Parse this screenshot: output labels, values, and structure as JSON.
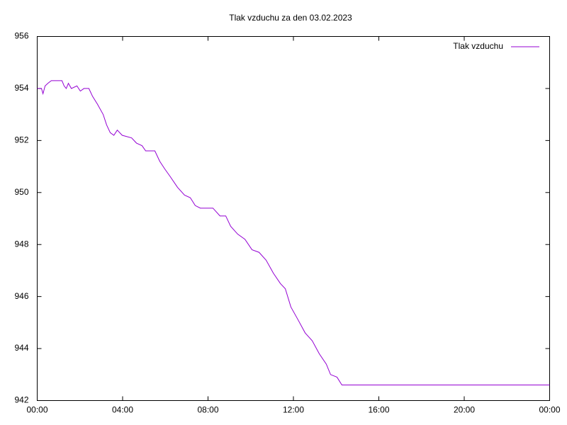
{
  "chart_data": {
    "type": "line",
    "title": "Tlak vzduchu za den 03.02.2023",
    "x": [
      0,
      0.2,
      0.27,
      0.37,
      0.5,
      0.66,
      1.16,
      1.26,
      1.36,
      1.46,
      1.6,
      1.86,
      2.02,
      2.19,
      2.42,
      2.59,
      2.82,
      3.09,
      3.25,
      3.42,
      3.59,
      3.75,
      3.98,
      4.42,
      4.65,
      4.91,
      5.08,
      5.51,
      5.74,
      5.98,
      6.24,
      6.57,
      6.9,
      7.17,
      7.4,
      7.64,
      7.8,
      8.23,
      8.56,
      8.83,
      9.06,
      9.39,
      9.73,
      10.06,
      10.39,
      10.72,
      11.06,
      11.39,
      11.62,
      11.88,
      12.22,
      12.55,
      12.88,
      13.21,
      13.54,
      13.74,
      14.04,
      14.27,
      24
    ],
    "series": [
      {
        "name": "Tlak vzduchu",
        "color": "#9400d3",
        "values": [
          954.0,
          954.0,
          953.8,
          954.1,
          954.2,
          954.3,
          954.3,
          954.1,
          954.0,
          954.2,
          954.0,
          954.1,
          953.9,
          954.0,
          954.0,
          953.7,
          953.4,
          953.0,
          952.6,
          952.3,
          952.2,
          952.4,
          952.2,
          952.1,
          951.9,
          951.8,
          951.6,
          951.6,
          951.2,
          950.9,
          950.6,
          950.2,
          949.9,
          949.8,
          949.5,
          949.4,
          949.4,
          949.4,
          949.1,
          949.1,
          948.7,
          948.4,
          948.2,
          947.8,
          947.7,
          947.4,
          946.9,
          946.5,
          946.3,
          945.6,
          945.1,
          944.6,
          944.3,
          943.8,
          943.4,
          943.0,
          942.9,
          942.6,
          942.6
        ]
      }
    ],
    "xlim": [
      0,
      24
    ],
    "xticks": [
      {
        "value": 0,
        "label": "00:00"
      },
      {
        "value": 4,
        "label": "04:00"
      },
      {
        "value": 8,
        "label": "08:00"
      },
      {
        "value": 12,
        "label": "12:00"
      },
      {
        "value": 16,
        "label": "16:00"
      },
      {
        "value": 20,
        "label": "20:00"
      },
      {
        "value": 24,
        "label": "00:00"
      }
    ],
    "ylim": [
      942,
      956
    ],
    "yticks": [
      942,
      944,
      946,
      948,
      950,
      952,
      954,
      956
    ],
    "grid": false,
    "legend": "top-right"
  }
}
